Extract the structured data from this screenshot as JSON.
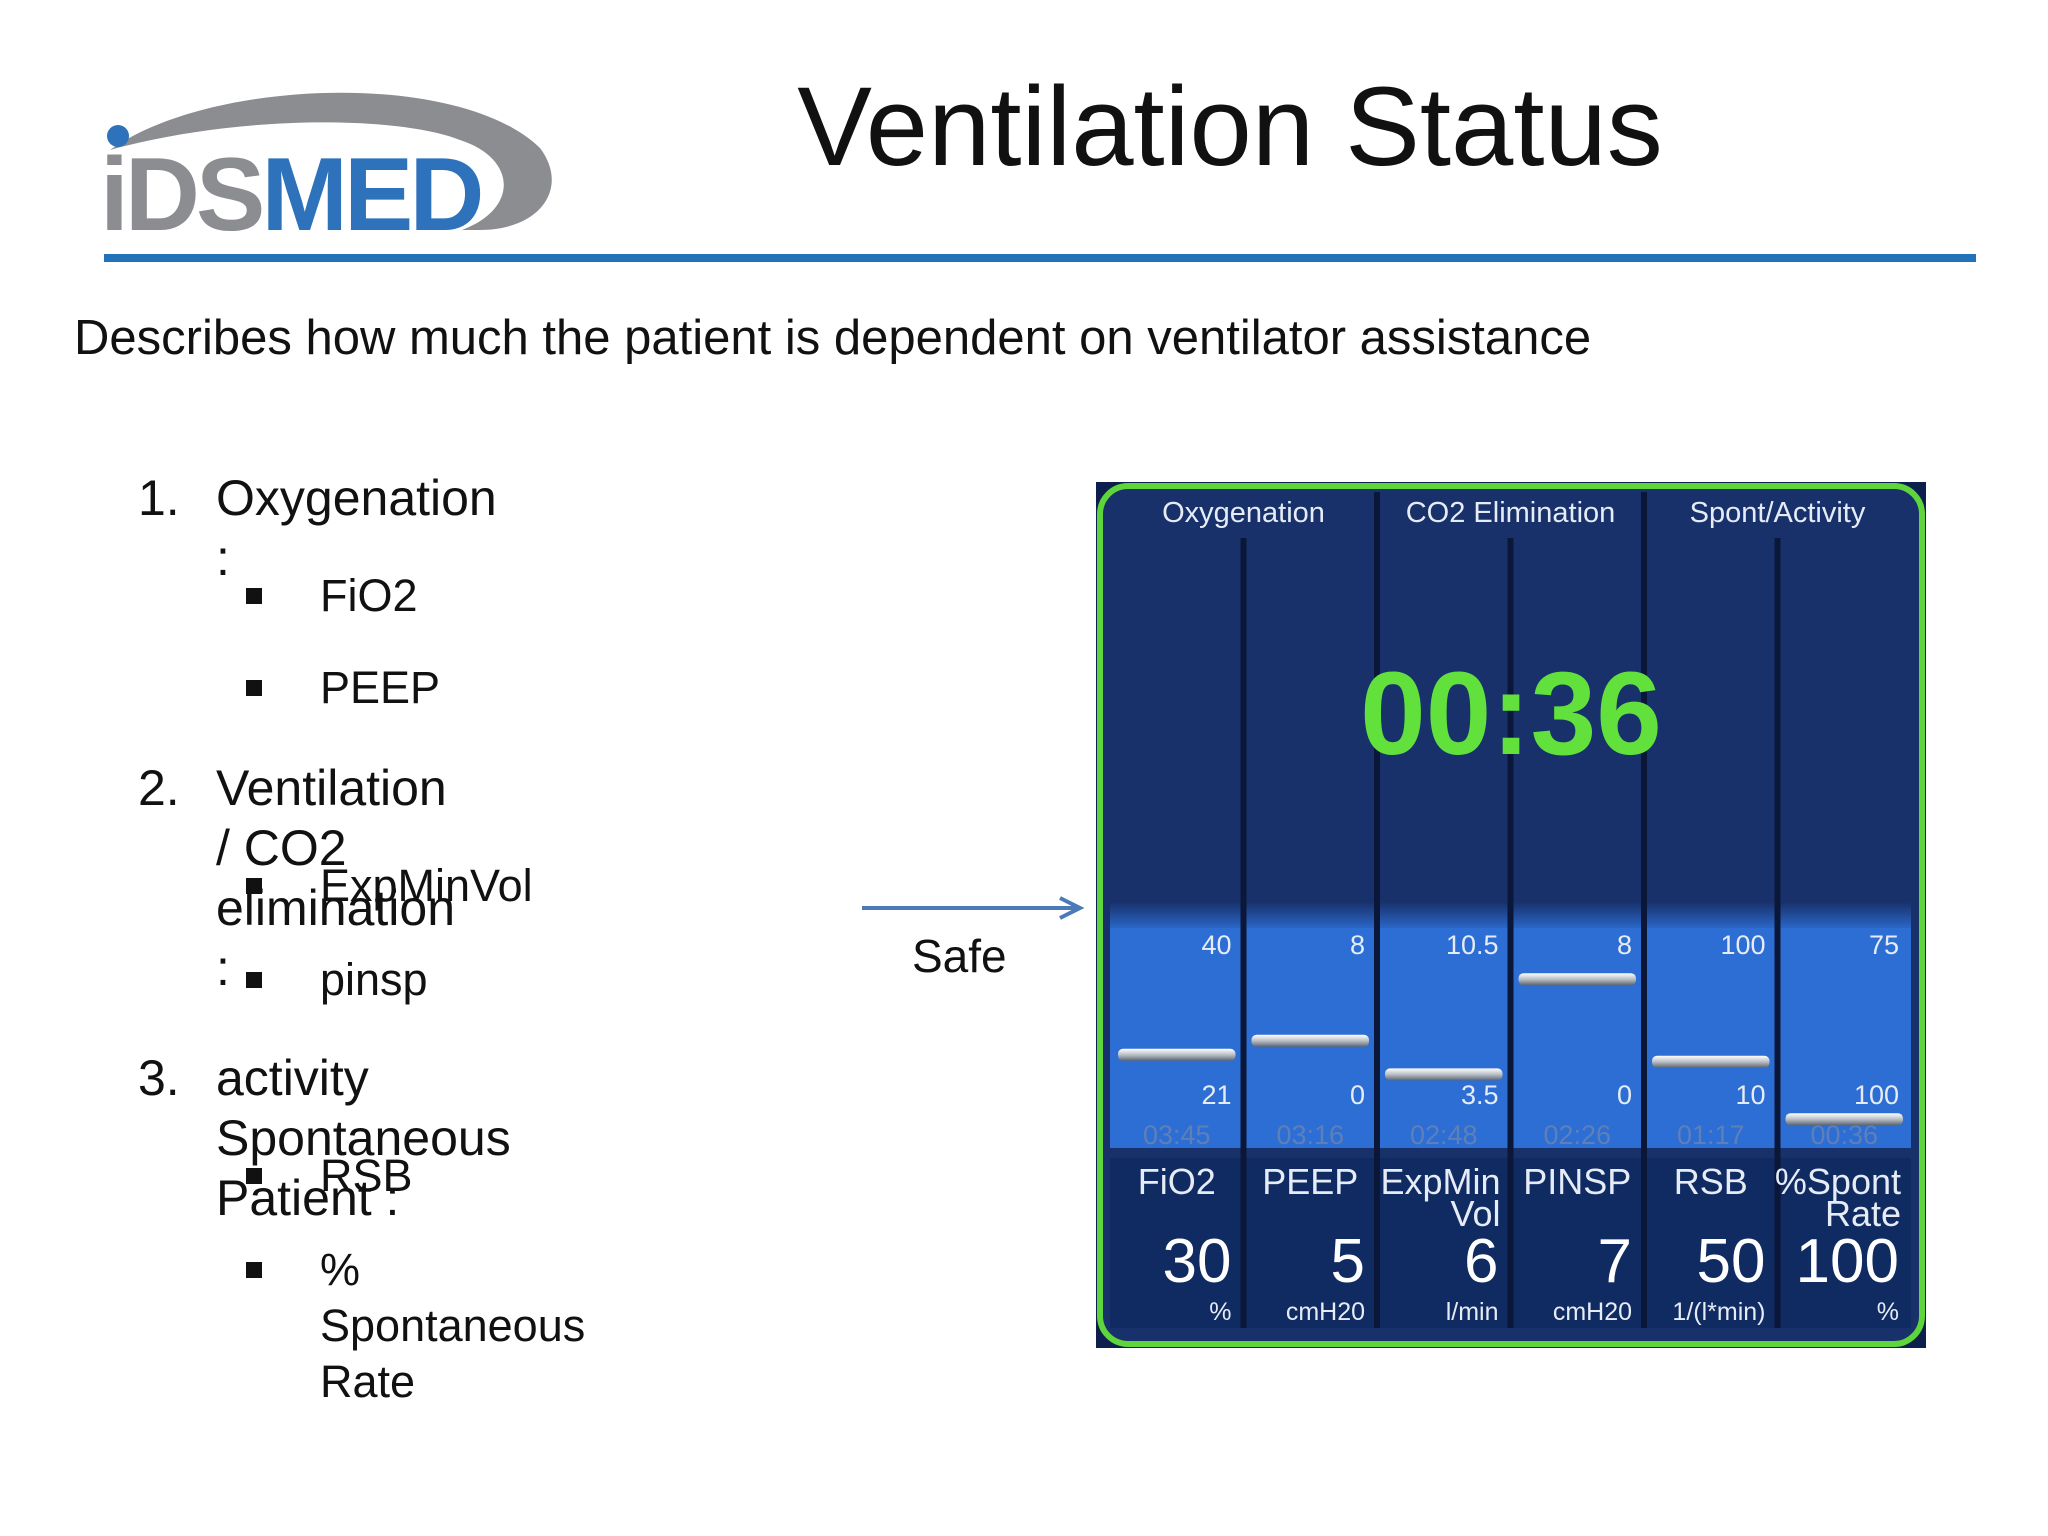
{
  "slide": {
    "logo_text": "iDSMED",
    "title": "Ventilation Status",
    "subtitle": "Describes how much the patient is dependent on ventilator assistance",
    "sections": [
      {
        "number": "1.",
        "label": "Oxygenation :",
        "items": [
          "FiO2",
          "PEEP"
        ]
      },
      {
        "number": "2.",
        "label": "Ventilation / CO2 elimination :",
        "items": [
          "ExpMinVol",
          "pinsp"
        ]
      },
      {
        "number": "3.",
        "label": "activity Spontaneous Patient :",
        "items": [
          "RSB",
          "% Spontaneous Rate"
        ]
      }
    ],
    "safe_label": "Safe"
  },
  "panel": {
    "groups": [
      "Oxygenation",
      "CO2 Elimination",
      "Spont/Activity"
    ],
    "timer": "00:36",
    "colors": {
      "border": "#5ed53a",
      "background": "#18316b",
      "safe_zone": "#2d6ed4",
      "timer": "#62e13c",
      "text": "#e6ecf6"
    },
    "params": [
      {
        "name": "FiO2",
        "value": "30",
        "unit": "%",
        "upper": "40",
        "lower": "21",
        "time": "03:45",
        "level": 0.38
      },
      {
        "name": "PEEP",
        "value": "5",
        "unit": "cmH20",
        "upper": "8",
        "lower": "0",
        "time": "03:16",
        "level": 0.48
      },
      {
        "name": "ExpMin Vol",
        "value": "6",
        "unit": "l/min",
        "upper": "10.5",
        "lower": "3.5",
        "time": "02:48",
        "level": 0.24
      },
      {
        "name": "PINSP",
        "value": "7",
        "unit": "cmH20",
        "upper": "8",
        "lower": "0",
        "time": "02:26",
        "level": 0.92
      },
      {
        "name": "RSB",
        "value": "50",
        "unit": "1/(l*min)",
        "upper": "100",
        "lower": "10",
        "time": "01:17",
        "level": 0.33
      },
      {
        "name": "%Spont Rate",
        "value": "100",
        "unit": "%",
        "upper": "75",
        "lower": "100",
        "time": "00:36",
        "level": -0.08
      }
    ]
  }
}
